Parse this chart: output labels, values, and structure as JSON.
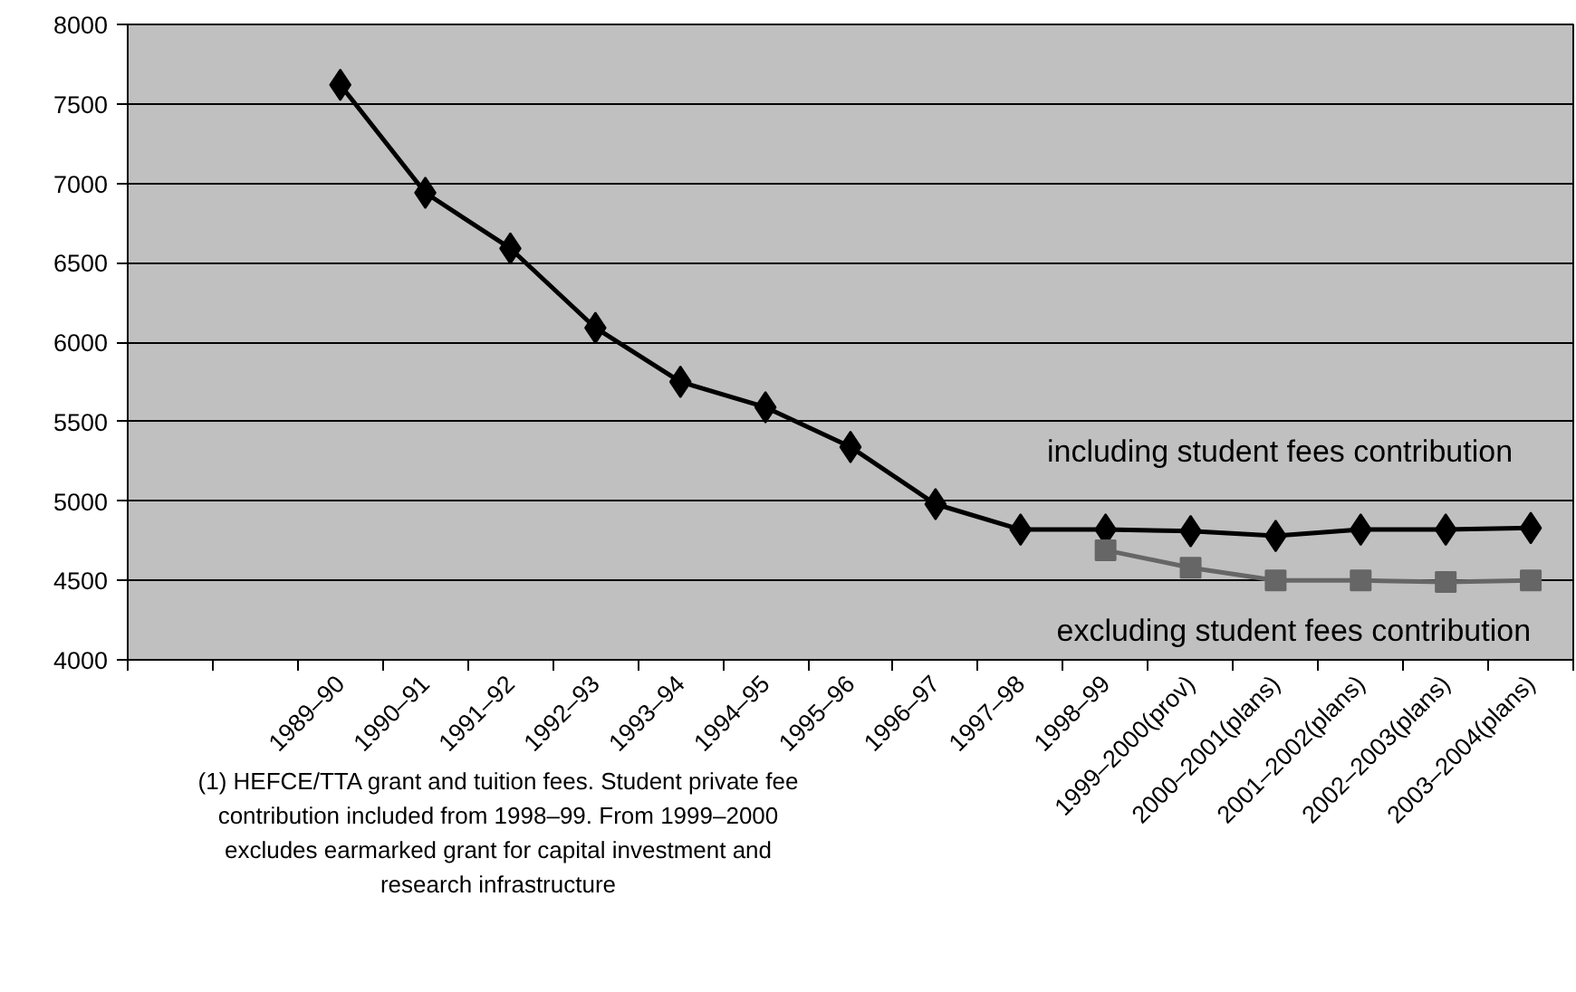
{
  "chart_data": {
    "type": "line",
    "categories": [
      null,
      null,
      "1989–90",
      "1990–91",
      "1991–92",
      "1992–93",
      "1993–94",
      "1994–95",
      "1995–96",
      "1996–97",
      "1997–98",
      "1998–99",
      "1999–2000(prov)",
      "2000–2001(plans)",
      "2001–2002(plans)",
      "2002–2003(plans)",
      "2003–2004(plans)"
    ],
    "series": [
      {
        "name": "including student fees contribution",
        "color": "#000000",
        "marker": "diamond",
        "values": [
          null,
          null,
          7620,
          6940,
          6590,
          6090,
          5750,
          5590,
          5340,
          4980,
          4820,
          4820,
          4810,
          4780,
          4820,
          4820,
          4830
        ]
      },
      {
        "name": "excluding student fees contribution",
        "color": "#666666",
        "marker": "square",
        "values": [
          null,
          null,
          null,
          null,
          null,
          null,
          null,
          null,
          null,
          null,
          null,
          4690,
          4580,
          4500,
          4500,
          4490,
          4500
        ]
      }
    ],
    "ylim": [
      4000,
      8000
    ],
    "yticks": [
      4000,
      4500,
      5000,
      5500,
      6000,
      6500,
      7000,
      7500,
      8000
    ],
    "grid": "y",
    "line_style": "solid",
    "annotations": [
      "(1) HEFCE/TTA grant and tuition fees. Student private fee contribution included from 1998–99. From 1999–2000 excludes earmarked grant for capital investment and research infrastructure"
    ]
  }
}
